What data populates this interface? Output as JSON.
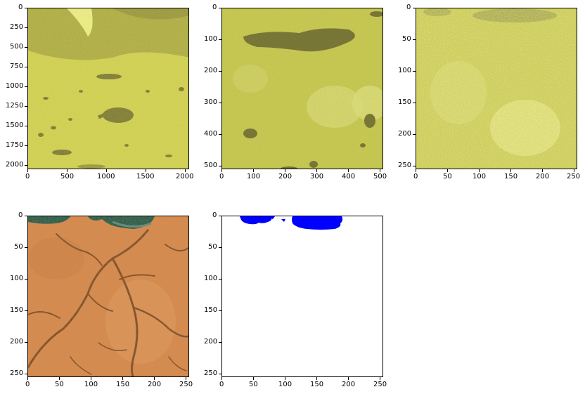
{
  "panels": [
    {
      "name": "panel-sar-2048",
      "kind": "sar-large",
      "xticks": [
        "0",
        "500",
        "1000",
        "1500",
        "2000"
      ],
      "yticks": [
        "0",
        "250",
        "500",
        "750",
        "1000",
        "1250",
        "1500",
        "1750",
        "2000"
      ],
      "palette": {
        "base": "#c9c94a",
        "dark": "#6e6b2a",
        "light": "#eef08a"
      }
    },
    {
      "name": "panel-sar-512",
      "kind": "sar-medium",
      "xticks": [
        "0",
        "100",
        "200",
        "300",
        "400",
        "500"
      ],
      "yticks": [
        "0",
        "100",
        "200",
        "300",
        "400",
        "500"
      ],
      "palette": {
        "base": "#cfd150",
        "dark": "#6d6a2c",
        "light": "#eef28e"
      }
    },
    {
      "name": "panel-sar-256",
      "kind": "sar-small",
      "xticks": [
        "0",
        "50",
        "100",
        "150",
        "200",
        "250"
      ],
      "yticks": [
        "0",
        "50",
        "100",
        "150",
        "200",
        "250"
      ],
      "palette": {
        "base": "#c7c84c",
        "dark": "#8a8840",
        "light": "#f1f38a"
      }
    },
    {
      "name": "panel-optical-256",
      "kind": "optical",
      "xticks": [
        "0",
        "50",
        "100",
        "150",
        "200",
        "250"
      ],
      "yticks": [
        "0",
        "50",
        "100",
        "150",
        "200",
        "250"
      ],
      "palette": {
        "base": "#d9894a",
        "dark": "#7a4b25",
        "light": "#eeb07a",
        "water": "#1f5a4a"
      }
    },
    {
      "name": "panel-mask-256",
      "kind": "mask",
      "xticks": [
        "0",
        "50",
        "100",
        "150",
        "200",
        "250"
      ],
      "yticks": [
        "0",
        "50",
        "100",
        "150",
        "200",
        "250"
      ],
      "palette": {
        "base": "#ffffff",
        "water": "#0000ff"
      }
    }
  ]
}
